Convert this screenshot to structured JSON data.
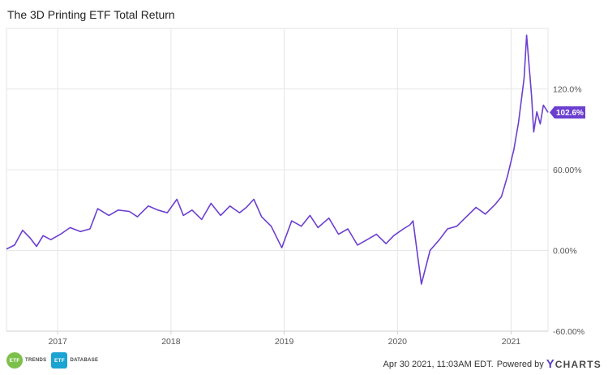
{
  "header": {
    "title": "The 3D Printing ETF Total Return"
  },
  "colors": {
    "series": "#6b3fd0",
    "grid": "#e6e6e6",
    "axis": "#cfcfcf"
  },
  "chart_data": {
    "type": "line",
    "title": "The 3D Printing ETF Total Return",
    "xlabel": "",
    "ylabel": "",
    "x_axis": {
      "type": "date",
      "ticks": [
        "2017",
        "2018",
        "2019",
        "2020",
        "2021"
      ],
      "range": [
        "2016-07-20",
        "2021-04-30"
      ]
    },
    "y_axis": {
      "position": "right",
      "unit": "%",
      "ylim": [
        -60,
        165
      ],
      "ticks": [
        -60,
        0,
        60,
        120
      ],
      "tick_labels": [
        "-60.00%",
        "0.00%",
        "60.00%",
        "120.0%"
      ]
    },
    "grid": true,
    "legend": "none",
    "series": [
      {
        "end_label": "102.6%",
        "x": [
          "2016-07-20",
          "2016-08-15",
          "2016-09-10",
          "2016-10-05",
          "2016-10-25",
          "2016-11-15",
          "2016-12-10",
          "2017-01-10",
          "2017-02-10",
          "2017-03-15",
          "2017-04-15",
          "2017-05-10",
          "2017-06-15",
          "2017-07-15",
          "2017-08-20",
          "2017-09-15",
          "2017-10-20",
          "2017-11-20",
          "2017-12-20",
          "2018-01-20",
          "2018-02-10",
          "2018-03-10",
          "2018-04-10",
          "2018-05-10",
          "2018-06-10",
          "2018-07-10",
          "2018-08-10",
          "2018-09-01",
          "2018-09-25",
          "2018-10-20",
          "2018-11-20",
          "2018-12-24",
          "2019-01-25",
          "2019-02-25",
          "2019-03-25",
          "2019-04-20",
          "2019-05-25",
          "2019-06-25",
          "2019-07-25",
          "2019-08-25",
          "2019-09-25",
          "2019-10-25",
          "2019-11-25",
          "2019-12-20",
          "2020-01-20",
          "2020-02-10",
          "2020-02-20",
          "2020-03-18",
          "2020-04-15",
          "2020-05-15",
          "2020-06-10",
          "2020-07-10",
          "2020-08-10",
          "2020-09-10",
          "2020-10-10",
          "2020-11-10",
          "2020-12-01",
          "2020-12-20",
          "2021-01-10",
          "2021-01-25",
          "2021-02-05",
          "2021-02-12",
          "2021-02-20",
          "2021-03-01",
          "2021-03-08",
          "2021-03-15",
          "2021-03-25",
          "2021-04-05",
          "2021-04-15",
          "2021-04-30"
        ],
        "y": [
          1,
          4,
          15,
          9,
          3,
          11,
          8,
          12,
          17,
          14,
          16,
          31,
          26,
          30,
          29,
          25,
          33,
          30,
          28,
          38,
          26,
          30,
          23,
          35,
          26,
          33,
          28,
          32,
          38,
          25,
          18,
          2,
          22,
          18,
          26,
          17,
          24,
          12,
          16,
          4,
          8,
          12,
          5,
          11,
          16,
          19,
          22,
          -25,
          0,
          8,
          16,
          18,
          25,
          32,
          27,
          34,
          40,
          55,
          75,
          95,
          115,
          128,
          160,
          135,
          115,
          88,
          103,
          94,
          108,
          102.6
        ]
      }
    ]
  },
  "footer": {
    "logo_trends": {
      "badge": "ETF",
      "word": "TRENDS"
    },
    "logo_database": {
      "badge": "ETF",
      "word": "DATABASE"
    },
    "timestamp": "Apr 30 2021, 11:03AM EDT.",
    "powered_by": "Powered by",
    "brand_y": "Y",
    "brand_rest": "CHARTS"
  }
}
